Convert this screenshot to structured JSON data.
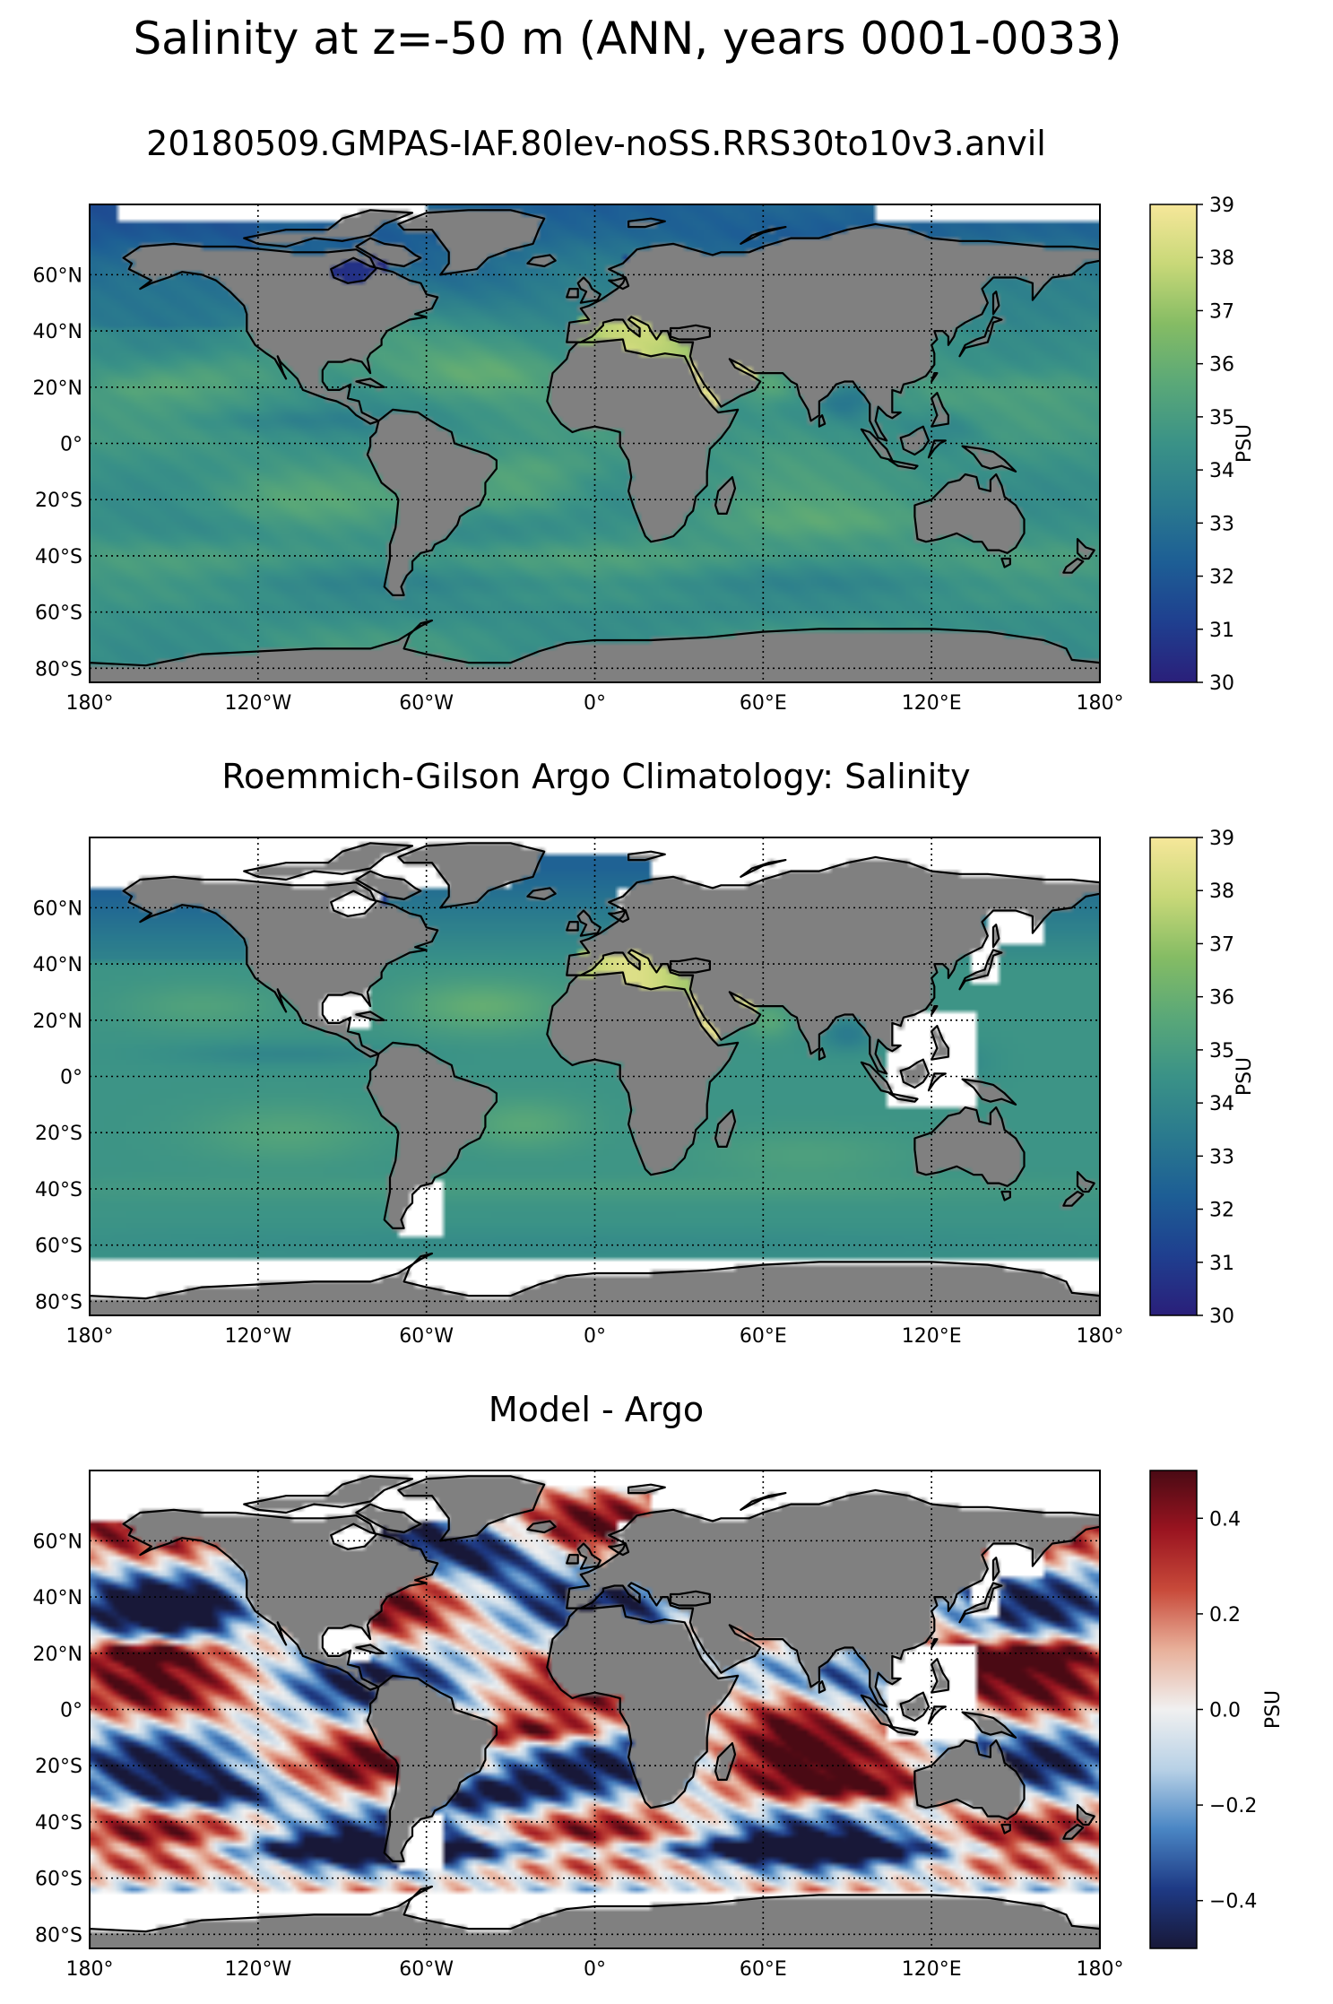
{
  "figure": {
    "suptitle": "Salinity at z=-50 m (ANN, years 0001-0033)"
  },
  "colors": {
    "land": "#808080",
    "coast": "#000000",
    "missing": "#ffffff",
    "salinity_cmap": [
      "#2a1f7a",
      "#1f3f8f",
      "#1d5e95",
      "#2a7a8e",
      "#3a9287",
      "#5aa878",
      "#85bc64",
      "#c8d878",
      "#f6e79a"
    ],
    "diff_cmap": [
      "#181838",
      "#1e3a85",
      "#4a86c4",
      "#b8d1e6",
      "#f0f0f0",
      "#e8b09a",
      "#c84a3a",
      "#9a1420",
      "#4a0a14"
    ]
  },
  "panels": [
    {
      "title": "20180509.GMPAS-IAF.80lev-noSS.RRS30to10v3.anvil",
      "field": "model",
      "colorbar": {
        "label": "PSU",
        "min": 30,
        "max": 39,
        "ticks": [
          "30",
          "31",
          "32",
          "33",
          "34",
          "35",
          "36",
          "37",
          "38",
          "39"
        ]
      }
    },
    {
      "title": "Roemmich-Gilson Argo Climatology: Salinity",
      "field": "obs",
      "colorbar": {
        "label": "PSU",
        "min": 30,
        "max": 39,
        "ticks": [
          "30",
          "31",
          "32",
          "33",
          "34",
          "35",
          "36",
          "37",
          "38",
          "39"
        ]
      }
    },
    {
      "title": "Model - Argo",
      "field": "diff",
      "colorbar": {
        "label": "PSU",
        "min": -0.5,
        "max": 0.5,
        "ticks": [
          "−0.4",
          "−0.2",
          "0.0",
          "0.2",
          "0.4"
        ],
        "tick_values": [
          -0.4,
          -0.2,
          0.0,
          0.2,
          0.4
        ]
      }
    }
  ],
  "chart_data": {
    "type": "heatmap",
    "projection": "PlateCarree",
    "lon_range": [
      -180,
      180
    ],
    "lat_range": [
      -85,
      85
    ],
    "grid": true,
    "x_ticks": [
      {
        "value": -180,
        "label": "180°"
      },
      {
        "value": -120,
        "label": "120°W"
      },
      {
        "value": -60,
        "label": "60°W"
      },
      {
        "value": 0,
        "label": "0°"
      },
      {
        "value": 60,
        "label": "60°E"
      },
      {
        "value": 120,
        "label": "120°E"
      },
      {
        "value": 180,
        "label": "180°"
      }
    ],
    "y_ticks": [
      {
        "value": 60,
        "label": "60°N"
      },
      {
        "value": 40,
        "label": "40°N"
      },
      {
        "value": 20,
        "label": "20°N"
      },
      {
        "value": 0,
        "label": "0°"
      },
      {
        "value": -20,
        "label": "20°S"
      },
      {
        "value": -40,
        "label": "40°S"
      },
      {
        "value": -60,
        "label": "60°S"
      },
      {
        "value": -80,
        "label": "80°S"
      }
    ],
    "obs_lat_coverage": [
      -65,
      80
    ]
  }
}
